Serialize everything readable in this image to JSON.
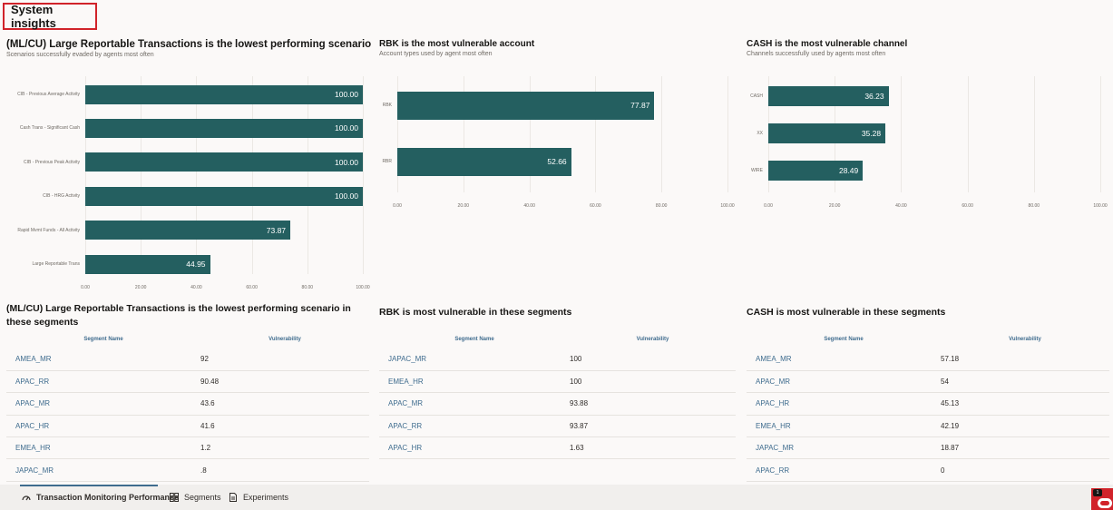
{
  "page": {
    "title": "System insights"
  },
  "panels": [
    {
      "title": "(ML/CU) Large Reportable Transactions is the",
      "title_emph": "lowest performing scenario",
      "subtitle": "Scenarios successfully evaded by agents most often"
    },
    {
      "title": "RBK is the most vulnerable account",
      "subtitle": "Account types used by agent most often"
    },
    {
      "title": "CASH is the most vulnerable channel",
      "subtitle": "Channels successfully used by agents most often"
    }
  ],
  "chart_data": [
    {
      "type": "bar",
      "orientation": "horizontal",
      "title": "(ML/CU) Large Reportable Transactions is the lowest performing scenario",
      "categories": [
        "CIB - Previous Average Activity",
        "Cash Trans - Significant Cash",
        "CIB - Previous Peak Activity",
        "CIB - HRG Activity",
        "Rapid Mvmt Funds - All Activity",
        "Large Reportable Trans"
      ],
      "values": [
        100.0,
        100.0,
        100.0,
        100.0,
        73.87,
        44.95
      ],
      "value_labels": [
        "100.00",
        "100.00",
        "100.00",
        "100.00",
        "73.87",
        "44.95"
      ],
      "xlim": [
        0,
        100
      ],
      "ticks": [
        "0.00",
        "20.00",
        "40.00",
        "60.00",
        "80.00",
        "100.00"
      ]
    },
    {
      "type": "bar",
      "orientation": "horizontal",
      "title": "RBK is the most vulnerable account",
      "categories": [
        "RBK",
        "RBR"
      ],
      "values": [
        77.87,
        52.66
      ],
      "value_labels": [
        "77.87",
        "52.66"
      ],
      "xlim": [
        0,
        100
      ],
      "ticks": [
        "0.00",
        "20.00",
        "40.00",
        "60.00",
        "80.00",
        "100.00"
      ]
    },
    {
      "type": "bar",
      "orientation": "horizontal",
      "title": "CASH is the most vulnerable channel",
      "categories": [
        "CASH",
        "XX",
        "WIRE"
      ],
      "values": [
        36.23,
        35.28,
        28.49
      ],
      "value_labels": [
        "36.23",
        "35.28",
        "28.49"
      ],
      "xlim": [
        0,
        100
      ],
      "ticks": [
        "0.00",
        "20.00",
        "40.00",
        "60.00",
        "80.00",
        "100.00"
      ]
    }
  ],
  "segments": [
    {
      "title": "(ML/CU) Large Reportable Transactions is the lowest performing scenario in these segments",
      "col_name": "Segment Name",
      "col_value": "Vulnerability",
      "rows": [
        {
          "name": "AMEA_MR",
          "value": "92"
        },
        {
          "name": "APAC_RR",
          "value": "90.48"
        },
        {
          "name": "APAC_MR",
          "value": "43.6"
        },
        {
          "name": "APAC_HR",
          "value": "41.6"
        },
        {
          "name": "EMEA_HR",
          "value": "1.2"
        },
        {
          "name": "JAPAC_MR",
          "value": ".8"
        }
      ]
    },
    {
      "title": "RBK is most vulnerable in these segments",
      "col_name": "Segment Name",
      "col_value": "Vulnerability",
      "rows": [
        {
          "name": "JAPAC_MR",
          "value": "100"
        },
        {
          "name": "EMEA_HR",
          "value": "100"
        },
        {
          "name": "APAC_MR",
          "value": "93.88"
        },
        {
          "name": "APAC_RR",
          "value": "93.87"
        },
        {
          "name": "APAC_HR",
          "value": "1.63"
        }
      ]
    },
    {
      "title": "CASH is most vulnerable in these segments",
      "col_name": "Segment Name",
      "col_value": "Vulnerability",
      "rows": [
        {
          "name": "AMEA_MR",
          "value": "57.18"
        },
        {
          "name": "APAC_MR",
          "value": "54"
        },
        {
          "name": "APAC_HR",
          "value": "45.13"
        },
        {
          "name": "EMEA_HR",
          "value": "42.19"
        },
        {
          "name": "JAPAC_MR",
          "value": "18.87"
        },
        {
          "name": "APAC_RR",
          "value": "0"
        }
      ]
    }
  ],
  "footer": {
    "tabs": [
      {
        "label": "Transaction Monitoring Performance",
        "icon": "gauge-icon",
        "active": true
      },
      {
        "label": "Segments",
        "icon": "grid-icon",
        "active": false
      },
      {
        "label": "Experiments",
        "icon": "document-icon",
        "active": false
      }
    ],
    "badge": "1"
  },
  "colors": {
    "bar": "#245f60",
    "link": "#3f6c8e",
    "highlight": "#d1232a"
  }
}
